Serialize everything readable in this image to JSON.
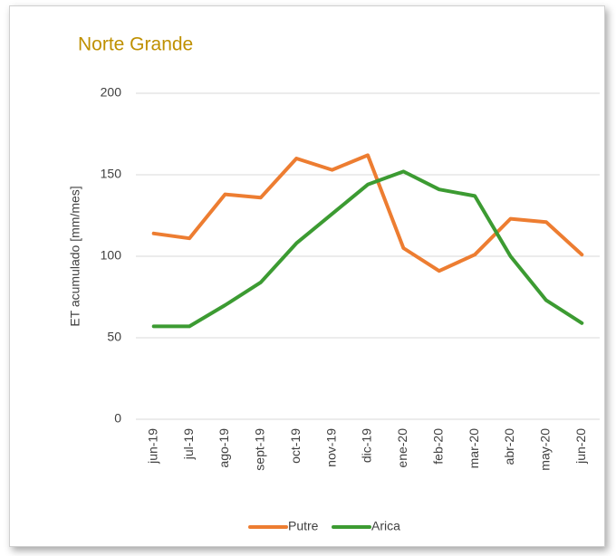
{
  "chart_data": {
    "type": "line",
    "title": "Norte Grande",
    "y_label": "ET acumulado [mm/mes]",
    "categories": [
      "jun-19",
      "jul-19",
      "ago-19",
      "sept-19",
      "oct-19",
      "nov-19",
      "dic-19",
      "ene-20",
      "feb-20",
      "mar-20",
      "abr-20",
      "may-20",
      "jun-20"
    ],
    "series": [
      {
        "name": "Putre",
        "color": "#ed7d31",
        "values": [
          114,
          111,
          138,
          136,
          160,
          153,
          162,
          105,
          91,
          101,
          123,
          121,
          101
        ]
      },
      {
        "name": "Arica",
        "color": "#3c9b32",
        "values": [
          57,
          57,
          70,
          84,
          108,
          126,
          144,
          152,
          141,
          137,
          100,
          73,
          59
        ]
      }
    ],
    "ylim": [
      0,
      200
    ],
    "yticks": [
      0,
      50,
      100,
      150,
      200
    ],
    "grid": true,
    "legend": "bottom"
  }
}
